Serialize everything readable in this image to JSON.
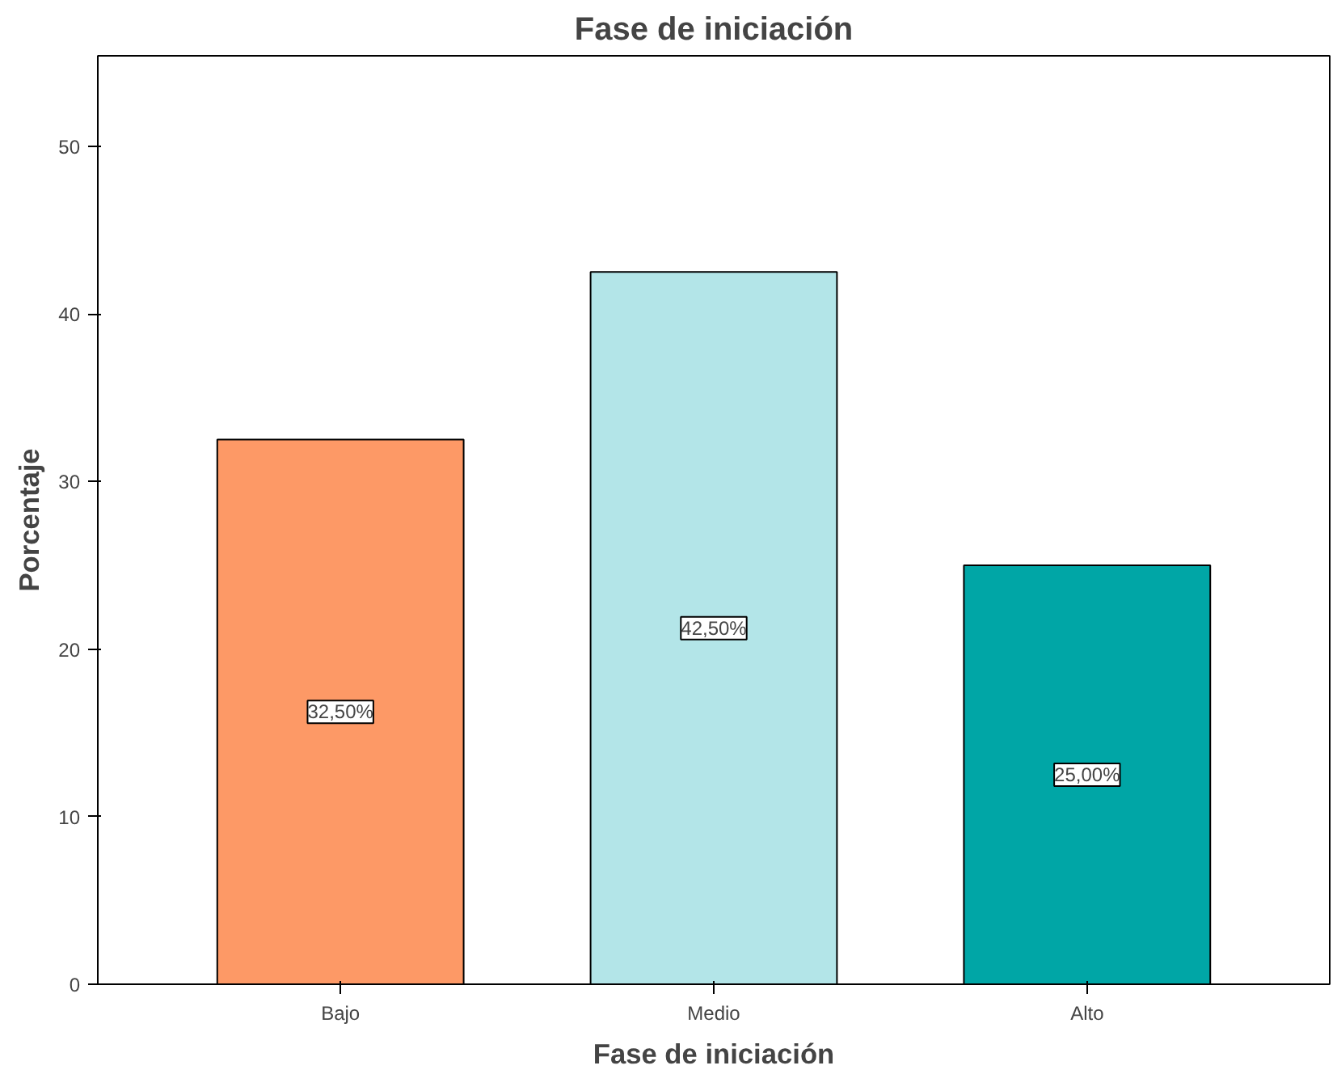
{
  "chart_data": {
    "type": "bar",
    "title": "Fase de iniciación",
    "xlabel": "Fase de iniciación",
    "ylabel": "Porcentaje",
    "categories": [
      "Bajo",
      "Medio",
      "Alto"
    ],
    "values": [
      32.5,
      42.5,
      25.0
    ],
    "colors": [
      "#fd9966",
      "#b3e5e8",
      "#00a6a6"
    ],
    "value_labels": [
      "32,50%",
      "42,50%",
      "25,00%"
    ],
    "ylim": [
      0,
      55.4
    ],
    "yticks": [
      0,
      10,
      20,
      30,
      40,
      50
    ],
    "grid": false
  }
}
